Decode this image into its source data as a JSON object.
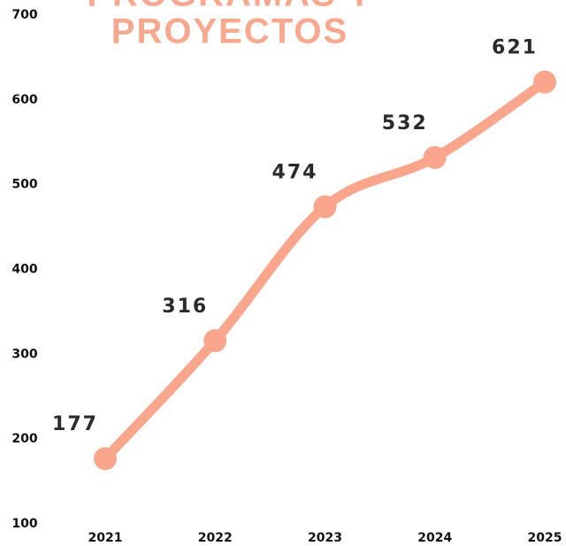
{
  "chart_data": {
    "type": "line",
    "title": [
      "PROGRAMAS Y",
      "PROYECTOS"
    ],
    "categories": [
      "2021",
      "2022",
      "2023",
      "2024",
      "2025"
    ],
    "series": [
      {
        "color": "#f9a68d",
        "values": [
          177,
          316,
          474,
          532,
          621
        ]
      }
    ],
    "ylim": [
      100,
      700
    ],
    "yticks": [
      100,
      200,
      300,
      400,
      500,
      600,
      700
    ],
    "grid": false
  }
}
